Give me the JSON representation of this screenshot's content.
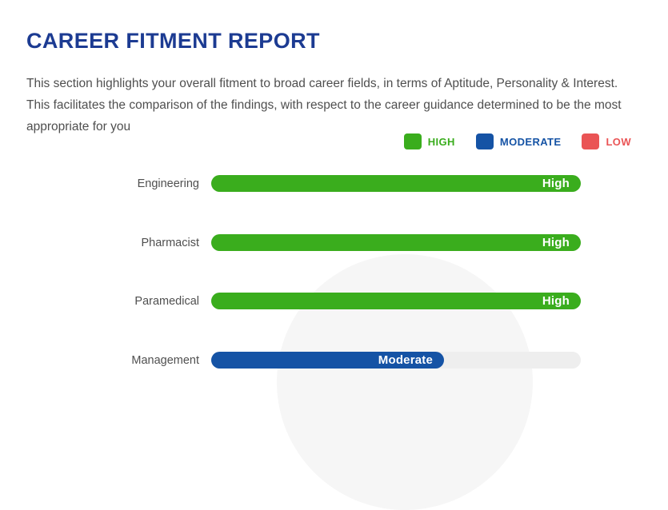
{
  "report": {
    "title": "CAREER FITMENT REPORT",
    "description": "This section highlights your overall fitment to broad career fields, in terms of Aptitude, Personality & Interest. This facilitates the comparison of the findings, with respect to the career guidance determined to be the most appropriate for you"
  },
  "legend": {
    "items": [
      {
        "label": "HIGH",
        "color": "#3aad1d"
      },
      {
        "label": "MODERATE",
        "color": "#1553a5"
      },
      {
        "label": "LOW",
        "color": "#ea5455"
      }
    ]
  },
  "chart_data": {
    "type": "bar",
    "orientation": "horizontal",
    "categories": [
      "Engineering",
      "Pharmacist",
      "Paramedical",
      "Management"
    ],
    "ratings": [
      "High",
      "High",
      "High",
      "Moderate"
    ],
    "bar_fractions": [
      1.0,
      1.0,
      1.0,
      0.63
    ],
    "bar_colors": [
      "#3aad1d",
      "#3aad1d",
      "#3aad1d",
      "#1553a5"
    ],
    "track_color": "#eeeeee",
    "rating_scale": [
      "LOW",
      "MODERATE",
      "HIGH"
    ],
    "legend_position": "top-right",
    "grid": false
  },
  "colors": {
    "title": "#1c3b92",
    "body_text": "#4f4f4f",
    "background": "#ffffff",
    "watermark_circle": "#f6f6f6"
  }
}
